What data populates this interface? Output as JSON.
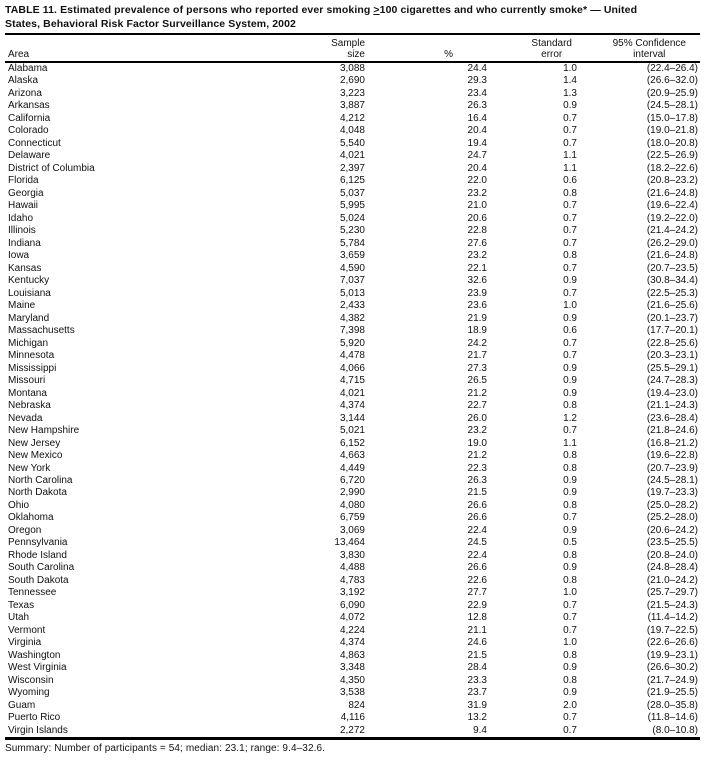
{
  "title": {
    "line1_pre": "TABLE 11. Estimated prevalence of persons who reported ever smoking ",
    "geq": ">",
    "line1_post": "100 cigarettes and who currently smoke* — United",
    "line2": "States, Behavioral Risk Factor Surveillance System, 2002"
  },
  "columns": {
    "area": "Area",
    "sample_line1": "Sample",
    "sample_line2": "size",
    "percent": "%",
    "se_line1": "Standard",
    "se_line2": "error",
    "ci_line1": "95% Confidence",
    "ci_line2": "interval"
  },
  "rows": [
    {
      "area": "Alabama",
      "sample": "3,088",
      "pct": "24.4",
      "se": "1.0",
      "ci": "(22.4–26.4)"
    },
    {
      "area": "Alaska",
      "sample": "2,690",
      "pct": "29.3",
      "se": "1.4",
      "ci": "(26.6–32.0)"
    },
    {
      "area": "Arizona",
      "sample": "3,223",
      "pct": "23.4",
      "se": "1.3",
      "ci": "(20.9–25.9)"
    },
    {
      "area": "Arkansas",
      "sample": "3,887",
      "pct": "26.3",
      "se": "0.9",
      "ci": "(24.5–28.1)"
    },
    {
      "area": "California",
      "sample": "4,212",
      "pct": "16.4",
      "se": "0.7",
      "ci": "(15.0–17.8)"
    },
    {
      "area": "Colorado",
      "sample": "4,048",
      "pct": "20.4",
      "se": "0.7",
      "ci": "(19.0–21.8)"
    },
    {
      "area": "Connecticut",
      "sample": "5,540",
      "pct": "19.4",
      "se": "0.7",
      "ci": "(18.0–20.8)"
    },
    {
      "area": "Delaware",
      "sample": "4,021",
      "pct": "24.7",
      "se": "1.1",
      "ci": "(22.5–26.9)"
    },
    {
      "area": "District of Columbia",
      "sample": "2,397",
      "pct": "20.4",
      "se": "1.1",
      "ci": "(18.2–22.6)"
    },
    {
      "area": "Florida",
      "sample": "6,125",
      "pct": "22.0",
      "se": "0.6",
      "ci": "(20.8–23.2)"
    },
    {
      "area": "Georgia",
      "sample": "5,037",
      "pct": "23.2",
      "se": "0.8",
      "ci": "(21.6–24.8)"
    },
    {
      "area": "Hawaii",
      "sample": "5,995",
      "pct": "21.0",
      "se": "0.7",
      "ci": "(19.6–22.4)"
    },
    {
      "area": "Idaho",
      "sample": "5,024",
      "pct": "20.6",
      "se": "0.7",
      "ci": "(19.2–22.0)"
    },
    {
      "area": "Illinois",
      "sample": "5,230",
      "pct": "22.8",
      "se": "0.7",
      "ci": "(21.4–24.2)"
    },
    {
      "area": "Indiana",
      "sample": "5,784",
      "pct": "27.6",
      "se": "0.7",
      "ci": "(26.2–29.0)"
    },
    {
      "area": "Iowa",
      "sample": "3,659",
      "pct": "23.2",
      "se": "0.8",
      "ci": "(21.6–24.8)"
    },
    {
      "area": "Kansas",
      "sample": "4,590",
      "pct": "22.1",
      "se": "0.7",
      "ci": "(20.7–23.5)"
    },
    {
      "area": "Kentucky",
      "sample": "7,037",
      "pct": "32.6",
      "se": "0.9",
      "ci": "(30.8–34.4)"
    },
    {
      "area": "Louisiana",
      "sample": "5,013",
      "pct": "23.9",
      "se": "0.7",
      "ci": "(22.5–25.3)"
    },
    {
      "area": "Maine",
      "sample": "2,433",
      "pct": "23.6",
      "se": "1.0",
      "ci": "(21.6–25.6)"
    },
    {
      "area": "Maryland",
      "sample": "4,382",
      "pct": "21.9",
      "se": "0.9",
      "ci": "(20.1–23.7)"
    },
    {
      "area": "Massachusetts",
      "sample": "7,398",
      "pct": "18.9",
      "se": "0.6",
      "ci": "(17.7–20.1)"
    },
    {
      "area": "Michigan",
      "sample": "5,920",
      "pct": "24.2",
      "se": "0.7",
      "ci": "(22.8–25.6)"
    },
    {
      "area": "Minnesota",
      "sample": "4,478",
      "pct": "21.7",
      "se": "0.7",
      "ci": "(20.3–23.1)"
    },
    {
      "area": "Mississippi",
      "sample": "4,066",
      "pct": "27.3",
      "se": "0.9",
      "ci": "(25.5–29.1)"
    },
    {
      "area": "Missouri",
      "sample": "4,715",
      "pct": "26.5",
      "se": "0.9",
      "ci": "(24.7–28.3)"
    },
    {
      "area": "Montana",
      "sample": "4,021",
      "pct": "21.2",
      "se": "0.9",
      "ci": "(19.4–23.0)"
    },
    {
      "area": "Nebraska",
      "sample": "4,374",
      "pct": "22.7",
      "se": "0.8",
      "ci": "(21.1–24.3)"
    },
    {
      "area": "Nevada",
      "sample": "3,144",
      "pct": "26.0",
      "se": "1.2",
      "ci": "(23.6–28.4)"
    },
    {
      "area": "New Hampshire",
      "sample": "5,021",
      "pct": "23.2",
      "se": "0.7",
      "ci": "(21.8–24.6)"
    },
    {
      "area": "New Jersey",
      "sample": "6,152",
      "pct": "19.0",
      "se": "1.1",
      "ci": "(16.8–21.2)"
    },
    {
      "area": "New Mexico",
      "sample": "4,663",
      "pct": "21.2",
      "se": "0.8",
      "ci": "(19.6–22.8)"
    },
    {
      "area": "New York",
      "sample": "4,449",
      "pct": "22.3",
      "se": "0.8",
      "ci": "(20.7–23.9)"
    },
    {
      "area": "North Carolina",
      "sample": "6,720",
      "pct": "26.3",
      "se": "0.9",
      "ci": "(24.5–28.1)"
    },
    {
      "area": "North Dakota",
      "sample": "2,990",
      "pct": "21.5",
      "se": "0.9",
      "ci": "(19.7–23.3)"
    },
    {
      "area": "Ohio",
      "sample": "4,080",
      "pct": "26.6",
      "se": "0.8",
      "ci": "(25.0–28.2)"
    },
    {
      "area": "Oklahoma",
      "sample": "6,759",
      "pct": "26.6",
      "se": "0.7",
      "ci": "(25.2–28.0)"
    },
    {
      "area": "Oregon",
      "sample": "3,069",
      "pct": "22.4",
      "se": "0.9",
      "ci": "(20.6–24.2)"
    },
    {
      "area": "Pennsylvania",
      "sample": "13,464",
      "pct": "24.5",
      "se": "0.5",
      "ci": "(23.5–25.5)"
    },
    {
      "area": "Rhode Island",
      "sample": "3,830",
      "pct": "22.4",
      "se": "0.8",
      "ci": "(20.8–24.0)"
    },
    {
      "area": "South Carolina",
      "sample": "4,488",
      "pct": "26.6",
      "se": "0.9",
      "ci": "(24.8–28.4)"
    },
    {
      "area": "South Dakota",
      "sample": "4,783",
      "pct": "22.6",
      "se": "0.8",
      "ci": "(21.0–24.2)"
    },
    {
      "area": "Tennessee",
      "sample": "3,192",
      "pct": "27.7",
      "se": "1.0",
      "ci": "(25.7–29.7)"
    },
    {
      "area": "Texas",
      "sample": "6,090",
      "pct": "22.9",
      "se": "0.7",
      "ci": "(21.5–24.3)"
    },
    {
      "area": "Utah",
      "sample": "4,072",
      "pct": "12.8",
      "se": "0.7",
      "ci": "(11.4–14.2)"
    },
    {
      "area": "Vermont",
      "sample": "4,224",
      "pct": "21.1",
      "se": "0.7",
      "ci": "(19.7–22.5)"
    },
    {
      "area": "Virginia",
      "sample": "4,374",
      "pct": "24.6",
      "se": "1.0",
      "ci": "(22.6–26.6)"
    },
    {
      "area": "Washington",
      "sample": "4,863",
      "pct": "21.5",
      "se": "0.8",
      "ci": "(19.9–23.1)"
    },
    {
      "area": "West Virginia",
      "sample": "3,348",
      "pct": "28.4",
      "se": "0.9",
      "ci": "(26.6–30.2)"
    },
    {
      "area": "Wisconsin",
      "sample": "4,350",
      "pct": "23.3",
      "se": "0.8",
      "ci": "(21.7–24.9)"
    },
    {
      "area": "Wyoming",
      "sample": "3,538",
      "pct": "23.7",
      "se": "0.9",
      "ci": "(21.9–25.5)"
    },
    {
      "area": "Guam",
      "sample": "824",
      "pct": "31.9",
      "se": "2.0",
      "ci": "(28.0–35.8)"
    },
    {
      "area": "Puerto Rico",
      "sample": "4,116",
      "pct": "13.2",
      "se": "0.7",
      "ci": "(11.8–14.6)"
    },
    {
      "area": "Virgin Islands",
      "sample": "2,272",
      "pct": "9.4",
      "se": "0.7",
      "ci": "(8.0–10.8)"
    }
  ],
  "summary": "Summary: Number of participants = 54; median: 23.1; range: 9.4–32.6."
}
